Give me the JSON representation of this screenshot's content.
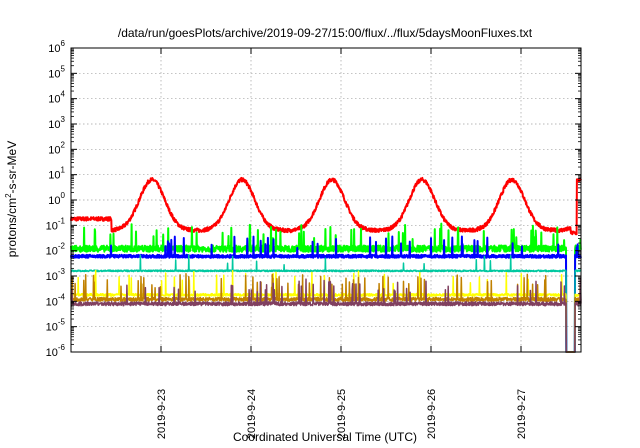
{
  "chart_data": {
    "type": "line",
    "title": "/data/run/goesPlots/archive/2019-09-27/15:00/flux/../flux/5daysMoonFluxes.txt",
    "xlabel": "Coordinated Universal Time (UTC)",
    "ylabel": "protons/cm2-s-sr-MeV",
    "ylabel_parts": {
      "pre": "protons/cm",
      "sup": "2",
      "post": "-s-sr-MeV"
    },
    "y_scale": "log",
    "ylim": [
      1e-06,
      1000000.0
    ],
    "y_ticks": [
      {
        "base": "10",
        "exp": "-6"
      },
      {
        "base": "10",
        "exp": "-5"
      },
      {
        "base": "10",
        "exp": "-4"
      },
      {
        "base": "10",
        "exp": "-3"
      },
      {
        "base": "10",
        "exp": "-2"
      },
      {
        "base": "10",
        "exp": "-1"
      },
      {
        "base": "10",
        "exp": "0"
      },
      {
        "base": "10",
        "exp": "1"
      },
      {
        "base": "10",
        "exp": "2"
      },
      {
        "base": "10",
        "exp": "3"
      },
      {
        "base": "10",
        "exp": "4"
      },
      {
        "base": "10",
        "exp": "5"
      },
      {
        "base": "10",
        "exp": "6"
      }
    ],
    "x_range": [
      "2019-09-22 00:00",
      "2019-09-27 16:00"
    ],
    "x_tick_labels": [
      "2019-9-23",
      "2019-9-24",
      "2019-9-25",
      "2019-9-26",
      "2019-9-27"
    ],
    "grid": true,
    "legend": "none",
    "series_style": [
      {
        "color": "#ff0000"
      },
      {
        "color": "#00ff00"
      },
      {
        "color": "#0000ff"
      },
      {
        "color": "#00c8a0"
      },
      {
        "color": "#ffff00"
      },
      {
        "color": "#c08000"
      },
      {
        "color": "#804060"
      }
    ]
  }
}
